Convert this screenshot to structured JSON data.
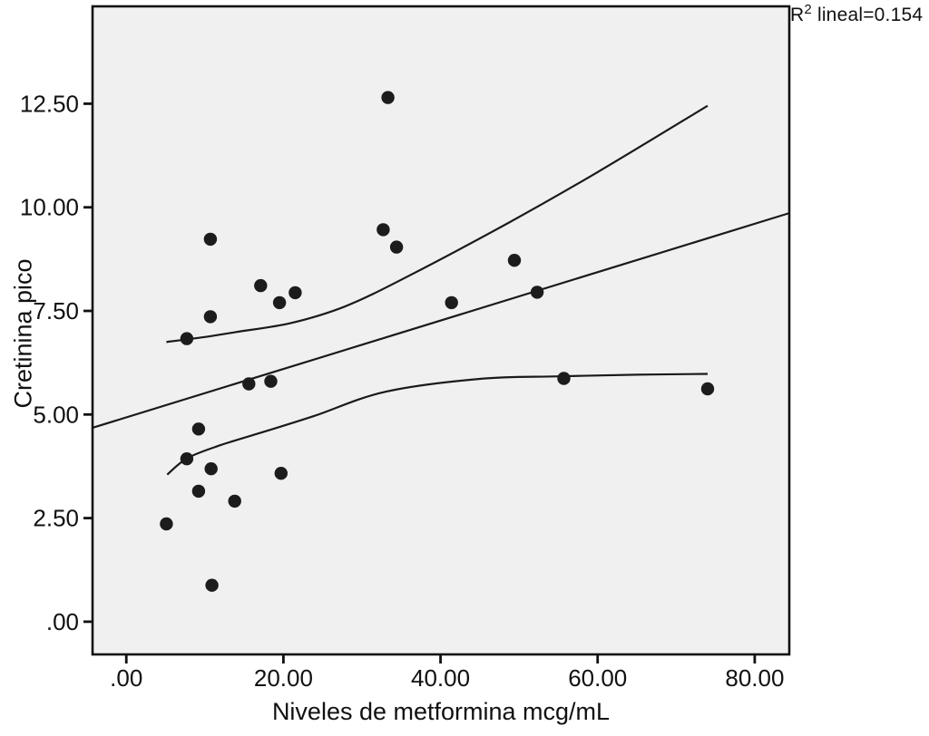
{
  "annotation": {
    "base": "R",
    "sup": "2",
    "rest": " lineal=0.154"
  },
  "colors": {
    "page_bg": "#ffffff",
    "plot_bg": "#f0f0f0",
    "frame": "#111111",
    "ink": "#111111",
    "line": "#1a1a1a",
    "marker": "#1c1c1c"
  },
  "chart_data": {
    "type": "scatter",
    "title": "",
    "xlabel": "Niveles de metformina mcg/mL",
    "ylabel": "Cretinina pico",
    "annotation_text": "R2 lineal=0.154",
    "r_squared": 0.154,
    "grid": false,
    "legend": "none",
    "xlim": [
      -4.3,
      84.4
    ],
    "ylim": [
      -0.79,
      14.85
    ],
    "x_ticks": [
      {
        "value": 0,
        "label": ".00"
      },
      {
        "value": 20,
        "label": "20.00"
      },
      {
        "value": 40,
        "label": "40.00"
      },
      {
        "value": 60,
        "label": "60.00"
      },
      {
        "value": 80,
        "label": "80.00"
      }
    ],
    "y_ticks": [
      {
        "value": 0,
        "label": ".00"
      },
      {
        "value": 2.5,
        "label": "2.50"
      },
      {
        "value": 5,
        "label": "5.00"
      },
      {
        "value": 7.5,
        "label": "7.50"
      },
      {
        "value": 10,
        "label": "10.00"
      },
      {
        "value": 12.5,
        "label": "12.50"
      }
    ],
    "points": [
      [
        33.3,
        12.65
      ],
      [
        10.7,
        9.23
      ],
      [
        32.7,
        9.46
      ],
      [
        34.4,
        9.04
      ],
      [
        49.4,
        8.72
      ],
      [
        17.1,
        8.11
      ],
      [
        21.5,
        7.94
      ],
      [
        52.3,
        7.95
      ],
      [
        19.5,
        7.7
      ],
      [
        41.4,
        7.7
      ],
      [
        10.7,
        7.36
      ],
      [
        7.7,
        6.83
      ],
      [
        15.6,
        5.74
      ],
      [
        18.4,
        5.8
      ],
      [
        55.7,
        5.87
      ],
      [
        74.0,
        5.62
      ],
      [
        9.2,
        4.65
      ],
      [
        7.7,
        3.93
      ],
      [
        10.8,
        3.69
      ],
      [
        9.2,
        3.15
      ],
      [
        13.8,
        2.91
      ],
      [
        5.1,
        2.36
      ],
      [
        19.7,
        3.58
      ],
      [
        10.9,
        0.88
      ]
    ],
    "regression_line": {
      "x": [
        -4.3,
        84.4
      ],
      "y": [
        4.68,
        9.86
      ]
    },
    "upper_confidence_band": [
      [
        5.1,
        6.75
      ],
      [
        10,
        6.87
      ],
      [
        14,
        6.99
      ],
      [
        21,
        7.21
      ],
      [
        28,
        7.62
      ],
      [
        36,
        8.35
      ],
      [
        48.6,
        9.62
      ],
      [
        60,
        10.85
      ],
      [
        74,
        12.45
      ]
    ],
    "lower_confidence_band": [
      [
        5.2,
        3.55
      ],
      [
        7.8,
        3.95
      ],
      [
        12,
        4.26
      ],
      [
        17.8,
        4.6
      ],
      [
        24,
        4.97
      ],
      [
        33,
        5.55
      ],
      [
        45,
        5.86
      ],
      [
        55,
        5.92
      ],
      [
        65,
        5.96
      ],
      [
        74,
        5.98
      ]
    ]
  }
}
